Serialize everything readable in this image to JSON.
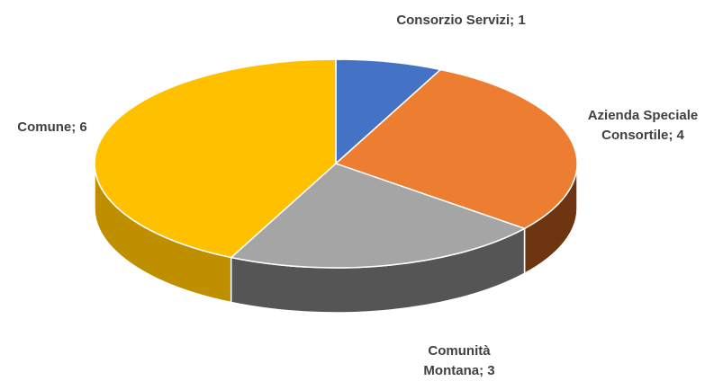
{
  "chart_data": {
    "type": "pie3d",
    "values": [
      1,
      4,
      3,
      6
    ],
    "value_labels": [
      "Consorzio Servizi; 1",
      "Azienda Speciale Consortile; 4",
      "Comunità Montana; 3",
      "Comune; 6"
    ],
    "colors": [
      "#4472c4",
      "#ed7d31",
      "#a5a5a5",
      "#ffc000"
    ],
    "side_colors": [
      "#2f4f8a",
      "#6e3511",
      "#555555",
      "#c08f00"
    ]
  }
}
